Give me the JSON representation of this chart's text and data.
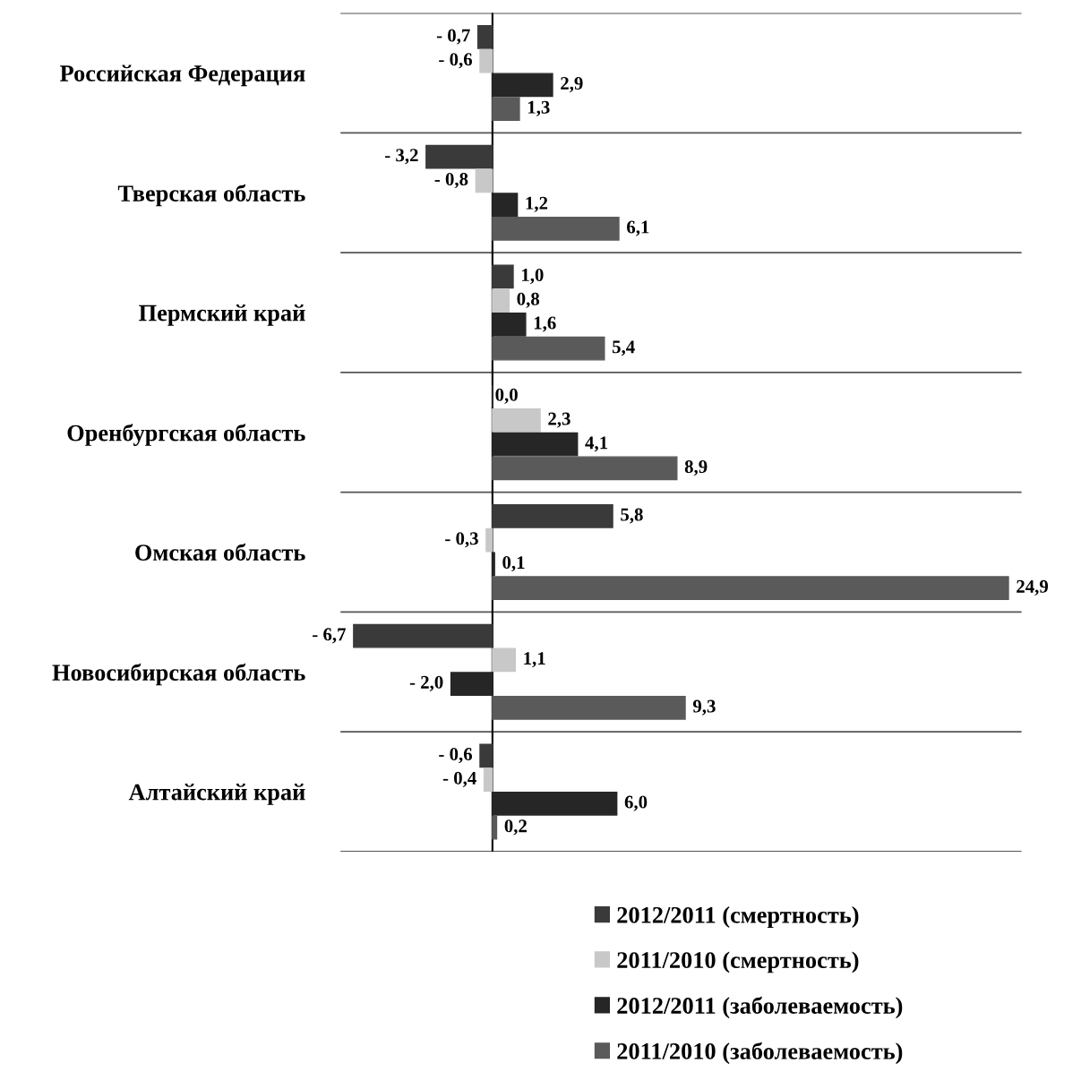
{
  "chart_data": {
    "type": "bar",
    "orientation": "horizontal",
    "categories": [
      "Российская Федерация",
      "Тверская область",
      "Пермский край",
      "Оренбургская область",
      "Омская область",
      "Новосибирская область",
      "Алтайский край"
    ],
    "series": [
      {
        "name": "2012/2011 (смертность)",
        "color": "#3a3a3a",
        "values": [
          -0.7,
          -3.2,
          1.0,
          0.0,
          5.8,
          -6.7,
          -0.6
        ],
        "value_labels": [
          "- 0,7",
          "- 3,2",
          "1,0",
          "0,0",
          "5,8",
          "- 6,7",
          "- 0,6"
        ]
      },
      {
        "name": "2011/2010 (смертность)",
        "color": "#c8c8c8",
        "values": [
          -0.6,
          -0.8,
          0.8,
          2.3,
          -0.3,
          1.1,
          -0.4
        ],
        "value_labels": [
          "- 0,6",
          "- 0,8",
          "0,8",
          "2,3",
          "- 0,3",
          "1,1",
          "- 0,4"
        ]
      },
      {
        "name": "2012/2011 (заболеваемость)",
        "color": "#262626",
        "values": [
          2.9,
          1.2,
          1.6,
          4.1,
          0.1,
          -2.0,
          6.0
        ],
        "value_labels": [
          "2,9",
          "1,2",
          "1,6",
          "4,1",
          "0,1",
          "- 2,0",
          "6,0"
        ]
      },
      {
        "name": "2011/2010 (заболеваемость)",
        "color": "#5a5a5a",
        "values": [
          1.3,
          6.1,
          5.4,
          8.9,
          24.9,
          9.3,
          0.2
        ],
        "value_labels": [
          "1,3",
          "6,1",
          "5,4",
          "8,9",
          "24,9",
          "9,3",
          "0,2"
        ]
      }
    ],
    "grid": "y",
    "legend": "bottom",
    "tick_labels": "y"
  }
}
